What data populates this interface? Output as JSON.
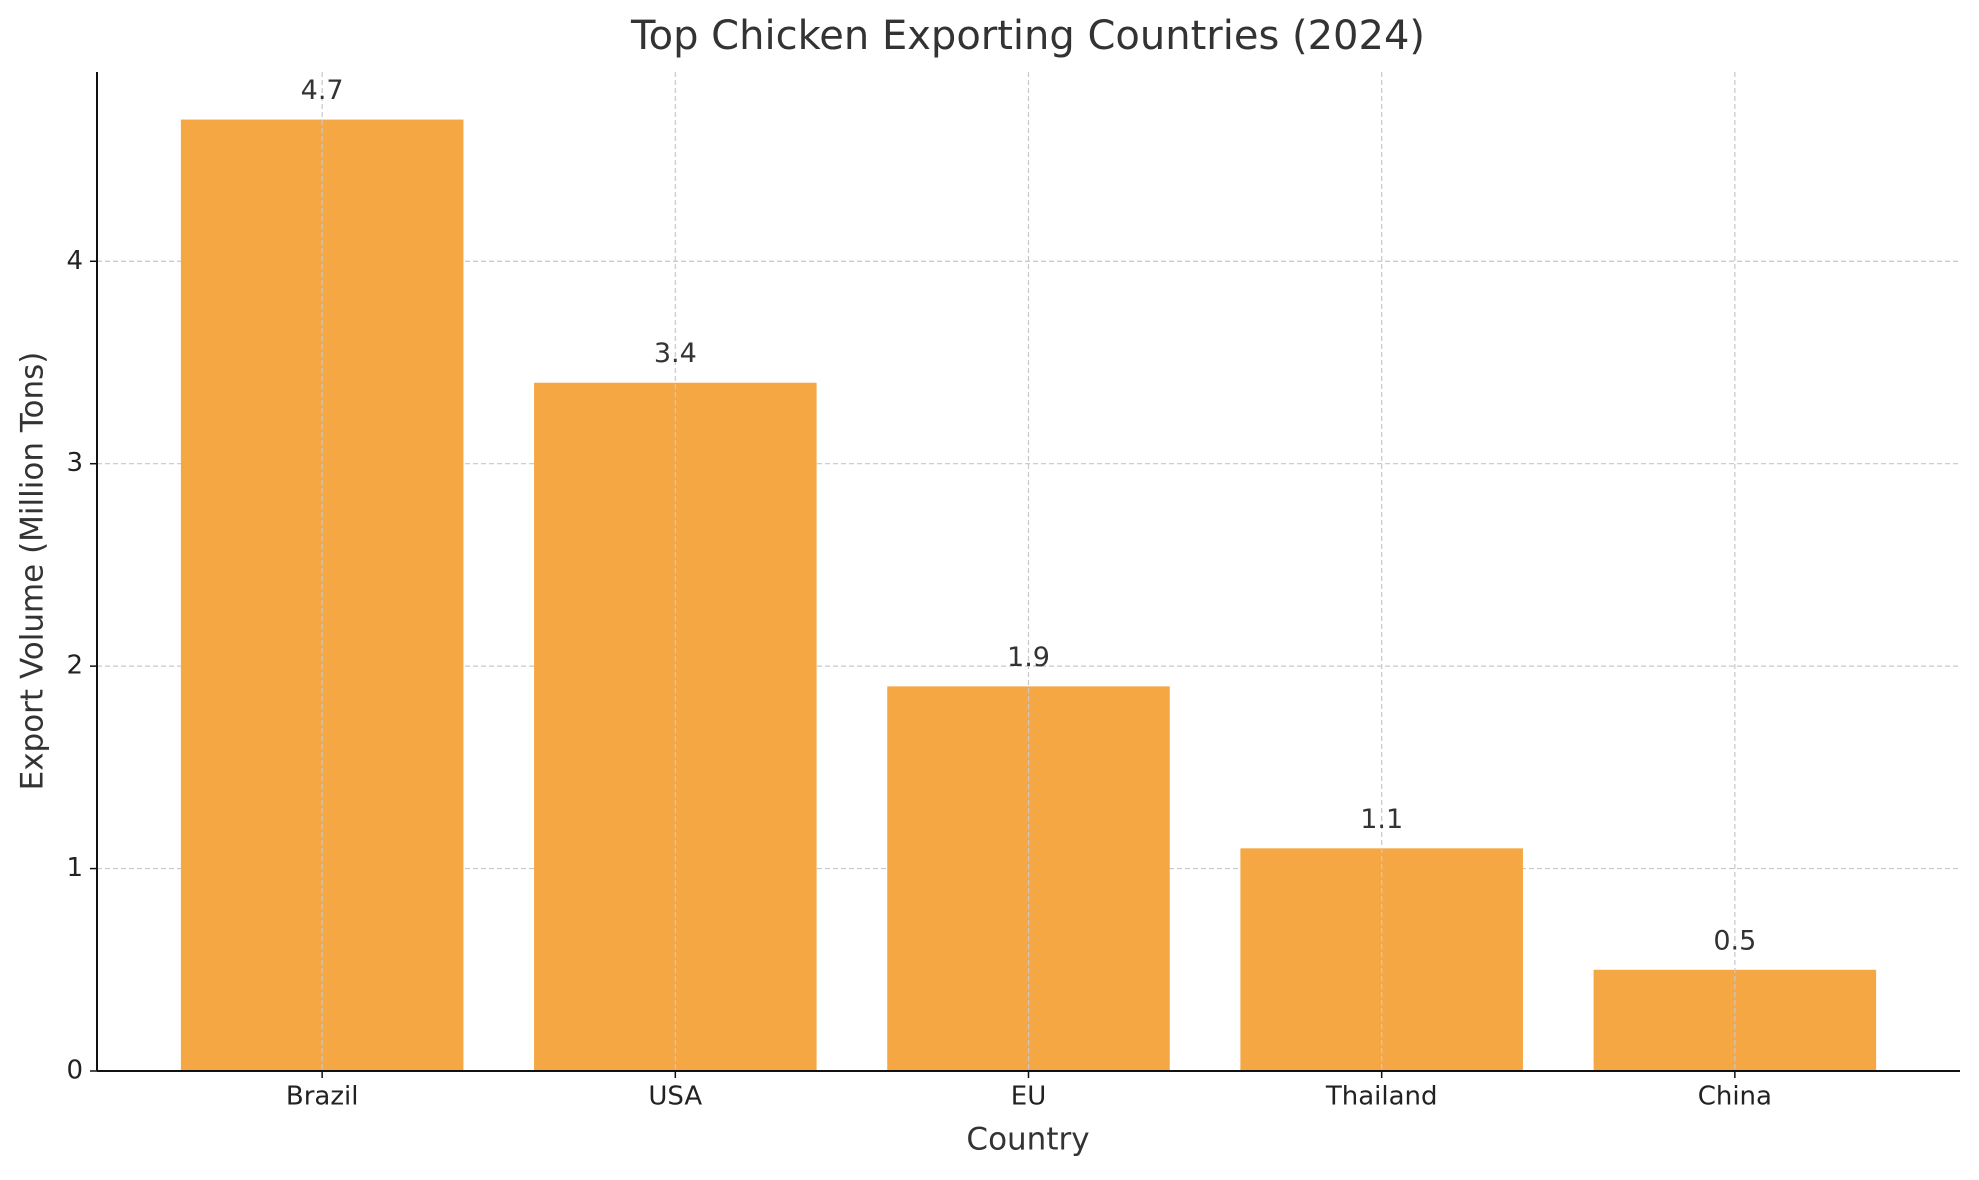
{
  "chart_data": {
    "type": "bar",
    "title": "Top Chicken Exporting Countries (2024)",
    "x_label": "Country",
    "y_label": "Export Volume (Million Tons)",
    "categories": [
      "Brazil",
      "USA",
      "EU",
      "Thailand",
      "China"
    ],
    "values": [
      4.7,
      3.4,
      1.9,
      1.1,
      0.5
    ],
    "color": "#f4a742",
    "ylim": [
      0,
      4.935
    ],
    "yticks": [
      0,
      1,
      2,
      3,
      4
    ],
    "grid": true
  }
}
